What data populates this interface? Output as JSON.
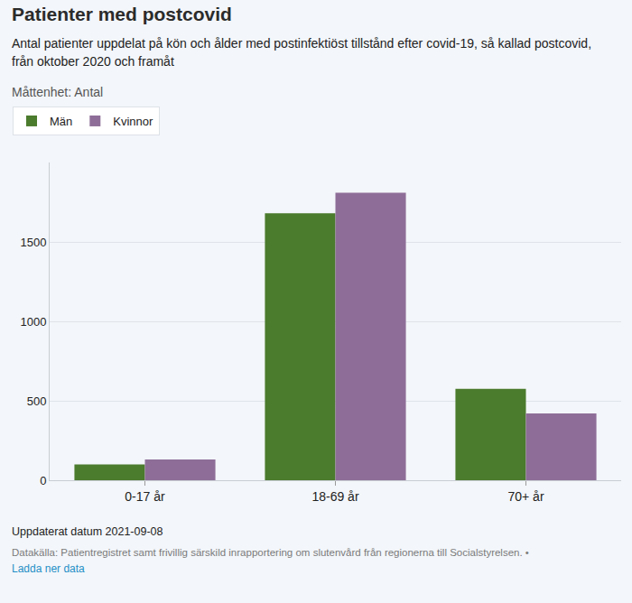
{
  "chart_data": {
    "type": "bar",
    "title": "Patienter med postcovid",
    "subtitle": "Antal patienter uppdelat på kön och ålder med postinfektiöst tillstånd efter covid-19, så kallad postcovid, från oktober 2020 och framåt",
    "annotations": [
      "Måttenhet: Antal",
      "Uppdaterat datum 2021-09-08",
      "Datakälla: Patientregistret samt frivillig särskild inrapportering om slutenvård från regionerna till Socialstyrelsen. •",
      "Ladda ner data"
    ],
    "categories": [
      "0-17 år",
      "18-69 år",
      "70+ år"
    ],
    "series": [
      {
        "name": "Män",
        "color": "#4b7b2d",
        "values": [
          100,
          1680,
          575
        ]
      },
      {
        "name": "Kvinnor",
        "color": "#8e6e98",
        "values": [
          130,
          1810,
          420
        ]
      }
    ],
    "ylim": [
      0,
      2000
    ],
    "yticks": [
      0,
      500,
      1000,
      1500
    ],
    "grid": true,
    "legend": "top left"
  }
}
